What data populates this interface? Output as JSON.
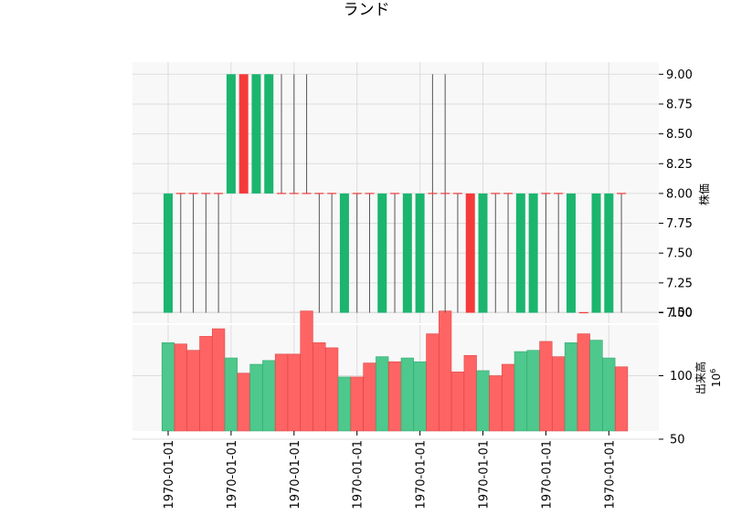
{
  "chart_data": {
    "type": "candlestick",
    "title": "ランド",
    "price_axis_label": "株価",
    "volume_axis_label": "出来高",
    "volume_scale_label": "10",
    "volume_scale_exponent": "6",
    "x_tick_labels": [
      "1970-01-01",
      "1970-01-01",
      "1970-01-01",
      "1970-01-01",
      "1970-01-01",
      "1970-01-01",
      "1970-01-01",
      "1970-01-01"
    ],
    "x_tick_candle_index": [
      0,
      5,
      10,
      15,
      20,
      25,
      30,
      35
    ],
    "price_ticks": [
      "7.00",
      "7.25",
      "7.50",
      "7.75",
      "8.00",
      "8.25",
      "8.50",
      "8.75",
      "9.00"
    ],
    "price_range": [
      6.95,
      9.1
    ],
    "volume_ticks": [
      "50",
      "100",
      "150"
    ],
    "volume_range": [
      32,
      160
    ],
    "colors": {
      "up": "#1bb56e",
      "down": "#f53a3a",
      "flat": "#555555",
      "vol_up": "#4ec88c",
      "vol_down": "#ff6464",
      "panel_bg": "#f8f8f8",
      "grid": "#dddddd"
    },
    "candles": [
      {
        "open": 7,
        "high": 8,
        "low": 7,
        "close": 8,
        "volume": 126
      },
      {
        "open": 8,
        "high": 8,
        "low": 7,
        "close": 8,
        "volume": 125
      },
      {
        "open": 8,
        "high": 8,
        "low": 7,
        "close": 8,
        "volume": 120
      },
      {
        "open": 8,
        "high": 8,
        "low": 7,
        "close": 8,
        "volume": 131
      },
      {
        "open": 8,
        "high": 8,
        "low": 7,
        "close": 8,
        "volume": 137
      },
      {
        "open": 8,
        "high": 9,
        "low": 8,
        "close": 9,
        "volume": 114
      },
      {
        "open": 9,
        "high": 9,
        "low": 8,
        "close": 8,
        "volume": 102
      },
      {
        "open": 8,
        "high": 9,
        "low": 8,
        "close": 9,
        "volume": 109
      },
      {
        "open": 8,
        "high": 9,
        "low": 8,
        "close": 9,
        "volume": 112
      },
      {
        "open": 8,
        "high": 9,
        "low": 8,
        "close": 8,
        "volume": 117
      },
      {
        "open": 8,
        "high": 9,
        "low": 8,
        "close": 8,
        "volume": 117
      },
      {
        "open": 8,
        "high": 9,
        "low": 8,
        "close": 8,
        "volume": 151
      },
      {
        "open": 8,
        "high": 8,
        "low": 7,
        "close": 8,
        "volume": 126
      },
      {
        "open": 8,
        "high": 8,
        "low": 7,
        "close": 8,
        "volume": 122
      },
      {
        "open": 7,
        "high": 8,
        "low": 7,
        "close": 8,
        "volume": 99
      },
      {
        "open": 8,
        "high": 8,
        "low": 7,
        "close": 8,
        "volume": 99
      },
      {
        "open": 8,
        "high": 8,
        "low": 7,
        "close": 8,
        "volume": 110
      },
      {
        "open": 7,
        "high": 8,
        "low": 7,
        "close": 8,
        "volume": 115
      },
      {
        "open": 8,
        "high": 8,
        "low": 7,
        "close": 8,
        "volume": 111
      },
      {
        "open": 7,
        "high": 8,
        "low": 7,
        "close": 8,
        "volume": 114
      },
      {
        "open": 7,
        "high": 8,
        "low": 7,
        "close": 8,
        "volume": 111
      },
      {
        "open": 8,
        "high": 9,
        "low": 7,
        "close": 8,
        "volume": 133
      },
      {
        "open": 8,
        "high": 9,
        "low": 7,
        "close": 8,
        "volume": 151
      },
      {
        "open": 8,
        "high": 8,
        "low": 7,
        "close": 8,
        "volume": 103
      },
      {
        "open": 8,
        "high": 8,
        "low": 7,
        "close": 7,
        "volume": 116
      },
      {
        "open": 7,
        "high": 8,
        "low": 7,
        "close": 8,
        "volume": 104
      },
      {
        "open": 8,
        "high": 8,
        "low": 7,
        "close": 8,
        "volume": 100
      },
      {
        "open": 8,
        "high": 8,
        "low": 7,
        "close": 8,
        "volume": 109
      },
      {
        "open": 7,
        "high": 8,
        "low": 7,
        "close": 8,
        "volume": 119
      },
      {
        "open": 7,
        "high": 8,
        "low": 7,
        "close": 8,
        "volume": 120
      },
      {
        "open": 8,
        "high": 8,
        "low": 7,
        "close": 8,
        "volume": 127
      },
      {
        "open": 8,
        "high": 8,
        "low": 7,
        "close": 8,
        "volume": 115
      },
      {
        "open": 7,
        "high": 8,
        "low": 7,
        "close": 8,
        "volume": 126
      },
      {
        "open": 7,
        "high": 7,
        "low": 7,
        "close": 7,
        "volume": 133
      },
      {
        "open": 7,
        "high": 8,
        "low": 7,
        "close": 8,
        "volume": 128
      },
      {
        "open": 7,
        "high": 8,
        "low": 7,
        "close": 8,
        "volume": 114
      },
      {
        "open": 8,
        "high": 8,
        "low": 7,
        "close": 8,
        "volume": 107
      }
    ]
  }
}
